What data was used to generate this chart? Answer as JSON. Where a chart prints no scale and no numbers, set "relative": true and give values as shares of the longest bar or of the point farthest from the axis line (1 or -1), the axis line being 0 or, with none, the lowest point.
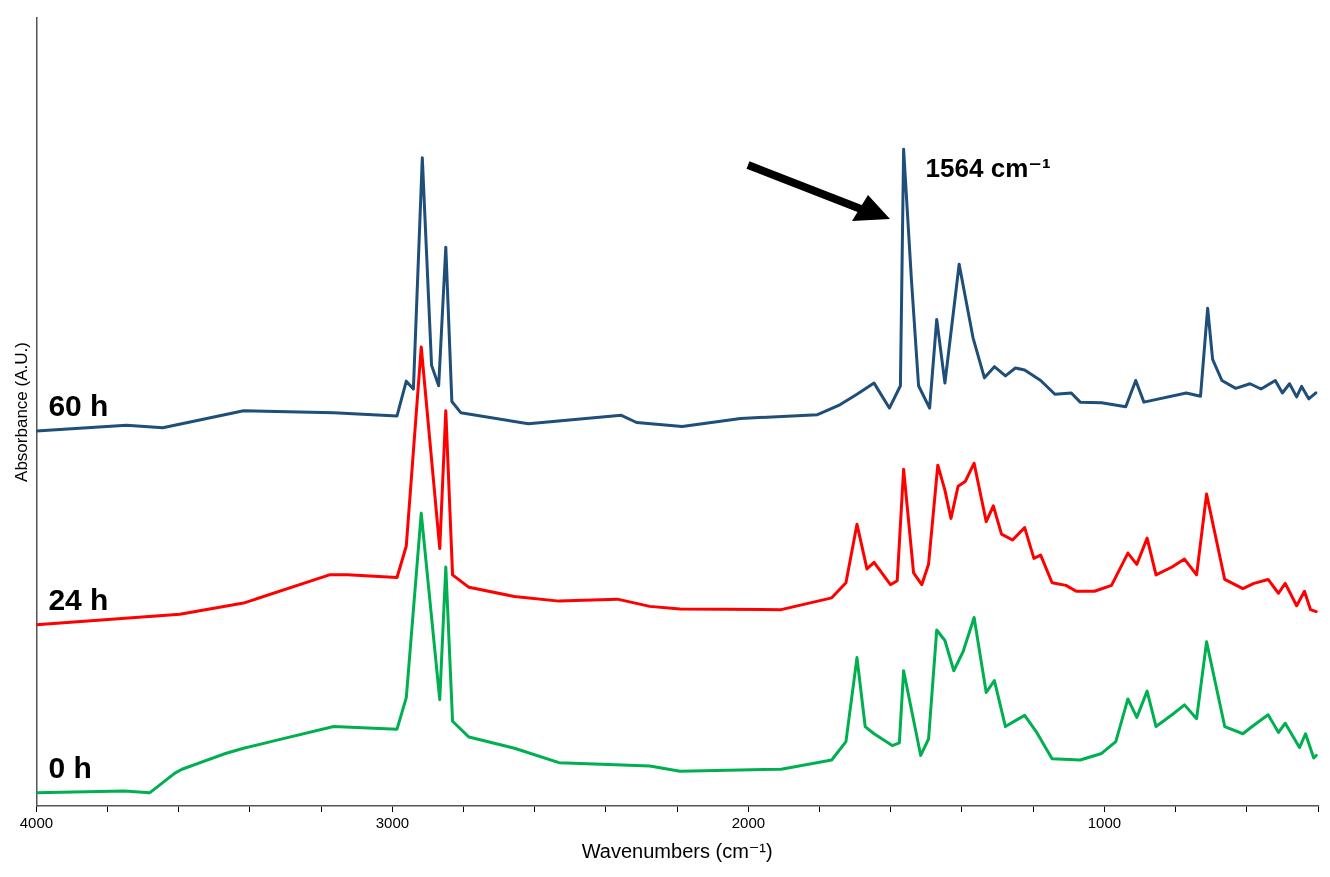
{
  "chart_data": {
    "type": "line",
    "xlabel": "Wavenumbers (cm⁻¹)",
    "ylabel": "Absorbance (A.U.)",
    "relative": true,
    "xlim": [
      4000,
      400
    ],
    "xticks": [
      4000,
      {
        "value": 3800,
        "label": null
      },
      {
        "value": 3600,
        "label": null
      },
      {
        "value": 3400,
        "label": null
      },
      {
        "value": 3200,
        "label": null
      },
      3000,
      {
        "value": 2800,
        "label": null
      },
      {
        "value": 2600,
        "label": null
      },
      {
        "value": 2400,
        "label": null
      },
      {
        "value": 2200,
        "label": null
      },
      2000,
      {
        "value": 1800,
        "label": null
      },
      {
        "value": 1600,
        "label": null
      },
      {
        "value": 1400,
        "label": null
      },
      {
        "value": 1200,
        "label": null
      },
      1000,
      {
        "value": 800,
        "label": null
      },
      {
        "value": 600,
        "label": null
      },
      {
        "value": 400,
        "label": null
      }
    ],
    "grid": false,
    "legend": false,
    "marker": "none",
    "line_style": "solid",
    "annotations": [
      {
        "text": "1564 cm⁻¹",
        "x": 1564,
        "y": 1
      }
    ],
    "series": [
      {
        "name": "60 h",
        "color": "#1f4e79",
        "x": [
          4000,
          3747,
          3645,
          3418,
          3165,
          2987,
          2961,
          2941,
          2916,
          2890,
          2870,
          2850,
          2833,
          2808,
          2618,
          2357,
          2314,
          2186,
          2022,
          1806,
          1743,
          1695,
          1647,
          1604,
          1573,
          1564,
          1542,
          1522,
          1491,
          1471,
          1448,
          1408,
          1369,
          1337,
          1309,
          1278,
          1250,
          1224,
          1179,
          1139,
          1093,
          1068,
          1008,
          940,
          912,
          889,
          770,
          730,
          710,
          696,
          670,
          631,
          591,
          560,
          520,
          500,
          480,
          460,
          446,
          426,
          406
        ],
        "values": [
          0.571,
          0.58,
          0.576,
          0.602,
          0.599,
          0.594,
          0.647,
          0.635,
          0.987,
          0.671,
          0.64,
          0.851,
          0.616,
          0.599,
          0.582,
          0.595,
          0.584,
          0.578,
          0.59,
          0.596,
          0.611,
          0.627,
          0.644,
          0.606,
          0.64,
          1,
          0.801,
          0.64,
          0.606,
          0.741,
          0.644,
          0.825,
          0.713,
          0.652,
          0.669,
          0.655,
          0.667,
          0.664,
          0.648,
          0.627,
          0.629,
          0.615,
          0.614,
          0.608,
          0.648,
          0.615,
          0.629,
          0.624,
          0.758,
          0.68,
          0.648,
          0.636,
          0.643,
          0.635,
          0.648,
          0.629,
          0.643,
          0.623,
          0.639,
          0.62,
          0.629
        ]
      },
      {
        "name": "24 h",
        "color": "#ff0000",
        "x": [
          4000,
          3597,
          3418,
          3177,
          3126,
          2987,
          2961,
          2919,
          2867,
          2850,
          2831,
          2785,
          2657,
          2532,
          2368,
          2277,
          2192,
          1908,
          1766,
          1726,
          1695,
          1667,
          1647,
          1601,
          1582,
          1564,
          1536,
          1513,
          1494,
          1468,
          1448,
          1431,
          1411,
          1391,
          1366,
          1332,
          1312,
          1289,
          1258,
          1224,
          1198,
          1179,
          1147,
          1108,
          1079,
          1028,
          980,
          934,
          909,
          880,
          855,
          810,
          775,
          741,
          713,
          662,
          611,
          580,
          540,
          511,
          492,
          460,
          438,
          421,
          405
        ],
        "values": [
          0.276,
          0.292,
          0.309,
          0.352,
          0.352,
          0.348,
          0.396,
          0.699,
          0.392,
          0.602,
          0.352,
          0.333,
          0.319,
          0.312,
          0.315,
          0.304,
          0.3,
          0.299,
          0.317,
          0.34,
          0.429,
          0.361,
          0.371,
          0.337,
          0.343,
          0.513,
          0.355,
          0.337,
          0.368,
          0.519,
          0.481,
          0.438,
          0.487,
          0.494,
          0.522,
          0.433,
          0.457,
          0.414,
          0.405,
          0.424,
          0.377,
          0.382,
          0.34,
          0.336,
          0.327,
          0.327,
          0.336,
          0.385,
          0.368,
          0.408,
          0.352,
          0.364,
          0.376,
          0.352,
          0.475,
          0.345,
          0.331,
          0.339,
          0.345,
          0.324,
          0.339,
          0.305,
          0.327,
          0.299,
          0.296
        ]
      },
      {
        "name": "0 h",
        "color": "#00b050",
        "x": [
          4000,
          3753,
          3682,
          3611,
          3591,
          3469,
          3418,
          3327,
          3165,
          2987,
          2961,
          2919,
          2867,
          2850,
          2831,
          2785,
          2657,
          2532,
          2277,
          2192,
          1908,
          1766,
          1726,
          1695,
          1672,
          1647,
          1596,
          1576,
          1564,
          1516,
          1494,
          1471,
          1448,
          1423,
          1397,
          1366,
          1332,
          1309,
          1278,
          1250,
          1224,
          1190,
          1147,
          1068,
          1008,
          968,
          934,
          909,
          880,
          855,
          810,
          775,
          741,
          713,
          662,
          611,
          585,
          540,
          511,
          492,
          452,
          435,
          412,
          405
        ],
        "values": [
          0.02,
          0.023,
          0.02,
          0.05,
          0.056,
          0.08,
          0.088,
          0.1,
          0.121,
          0.117,
          0.165,
          0.446,
          0.162,
          0.364,
          0.129,
          0.105,
          0.088,
          0.066,
          0.061,
          0.053,
          0.056,
          0.07,
          0.098,
          0.226,
          0.121,
          0.11,
          0.092,
          0.096,
          0.206,
          0.077,
          0.102,
          0.268,
          0.252,
          0.206,
          0.235,
          0.287,
          0.173,
          0.191,
          0.121,
          0.13,
          0.138,
          0.112,
          0.072,
          0.07,
          0.08,
          0.098,
          0.163,
          0.135,
          0.175,
          0.121,
          0.139,
          0.154,
          0.133,
          0.25,
          0.121,
          0.11,
          0.121,
          0.139,
          0.112,
          0.126,
          0.089,
          0.11,
          0.073,
          0.077
        ]
      }
    ]
  }
}
